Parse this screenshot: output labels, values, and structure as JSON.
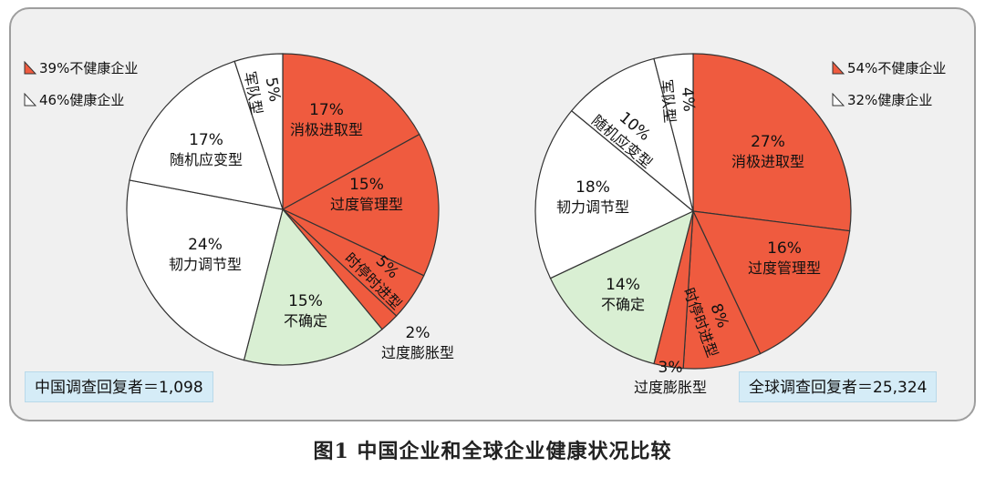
{
  "caption": "图1  中国企业和全球企业健康状况比较",
  "colors": {
    "unhealthy": "#ef5b3f",
    "healthy": "#ffffff",
    "uncertain": "#d9efd3",
    "outline": "#333333"
  },
  "chart_data": [
    {
      "type": "pie",
      "title": "",
      "respondents_label": "中国调查回复者＝1,098",
      "legend": [
        {
          "kind": "unhealthy",
          "label": "39%不健康企业"
        },
        {
          "kind": "healthy",
          "label": "46%健康企业"
        }
      ],
      "slices": [
        {
          "name": "消极进取型",
          "value": 17,
          "pct_label": "17%",
          "kind": "unhealthy"
        },
        {
          "name": "过度管理型",
          "value": 15,
          "pct_label": "15%",
          "kind": "unhealthy"
        },
        {
          "name": "时停时进型",
          "value": 5,
          "pct_label": "5%",
          "kind": "unhealthy"
        },
        {
          "name": "过度膨胀型",
          "value": 2,
          "pct_label": "2%",
          "kind": "unhealthy"
        },
        {
          "name": "不确定",
          "value": 15,
          "pct_label": "15%",
          "kind": "uncertain"
        },
        {
          "name": "韧力调节型",
          "value": 24,
          "pct_label": "24%",
          "kind": "healthy"
        },
        {
          "name": "随机应变型",
          "value": 17,
          "pct_label": "17%",
          "kind": "healthy"
        },
        {
          "name": "军队型",
          "value": 5,
          "pct_label": "5%",
          "kind": "healthy"
        }
      ]
    },
    {
      "type": "pie",
      "title": "",
      "respondents_label": "全球调查回复者＝25,324",
      "legend": [
        {
          "kind": "unhealthy",
          "label": "54%不健康企业"
        },
        {
          "kind": "healthy",
          "label": "32%健康企业"
        }
      ],
      "slices": [
        {
          "name": "消极进取型",
          "value": 27,
          "pct_label": "27%",
          "kind": "unhealthy"
        },
        {
          "name": "过度管理型",
          "value": 16,
          "pct_label": "16%",
          "kind": "unhealthy"
        },
        {
          "name": "时停时进型",
          "value": 8,
          "pct_label": "8%",
          "kind": "unhealthy"
        },
        {
          "name": "过度膨胀型",
          "value": 3,
          "pct_label": "3%",
          "kind": "unhealthy"
        },
        {
          "name": "不确定",
          "value": 14,
          "pct_label": "14%",
          "kind": "uncertain"
        },
        {
          "name": "韧力调节型",
          "value": 18,
          "pct_label": "18%",
          "kind": "healthy"
        },
        {
          "name": "随机应变型",
          "value": 10,
          "pct_label": "10%",
          "kind": "healthy"
        },
        {
          "name": "军队型",
          "value": 4,
          "pct_label": "4%",
          "kind": "healthy"
        }
      ]
    }
  ]
}
